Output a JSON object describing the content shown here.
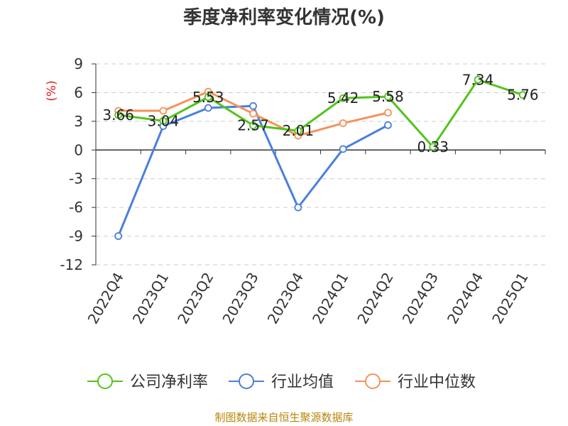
{
  "title": "季度净利率变化情况(%)",
  "source": "制图数据来自恒生聚源数据库",
  "chart_data": {
    "type": "line",
    "title": "季度净利率变化情况(%)",
    "ylabel": "(%)",
    "ylim": [
      -12,
      9
    ],
    "yticks": [
      9,
      6,
      3,
      0,
      -3,
      -6,
      -9,
      -12
    ],
    "grid": true,
    "legend_position": "bottom",
    "categories": [
      "2022Q4",
      "2023Q1",
      "2023Q2",
      "2023Q3",
      "2023Q4",
      "2024Q1",
      "2024Q2",
      "2024Q3",
      "2024Q4",
      "2025Q1"
    ],
    "series": [
      {
        "name": "公司净利率",
        "color": "#52c41a",
        "show_labels": true,
        "values": [
          3.66,
          3.04,
          5.53,
          2.57,
          2.01,
          5.42,
          5.58,
          0.33,
          7.34,
          5.76
        ]
      },
      {
        "name": "行业均值",
        "color": "#4a7fdc",
        "show_labels": false,
        "values": [
          -9.0,
          2.5,
          4.4,
          4.6,
          -6.0,
          0.1,
          2.6,
          null,
          null,
          null
        ]
      },
      {
        "name": "行业中位数",
        "color": "#f5925a",
        "show_labels": false,
        "values": [
          4.1,
          4.1,
          6.1,
          3.8,
          1.5,
          2.8,
          3.9,
          null,
          null,
          null
        ]
      }
    ]
  }
}
